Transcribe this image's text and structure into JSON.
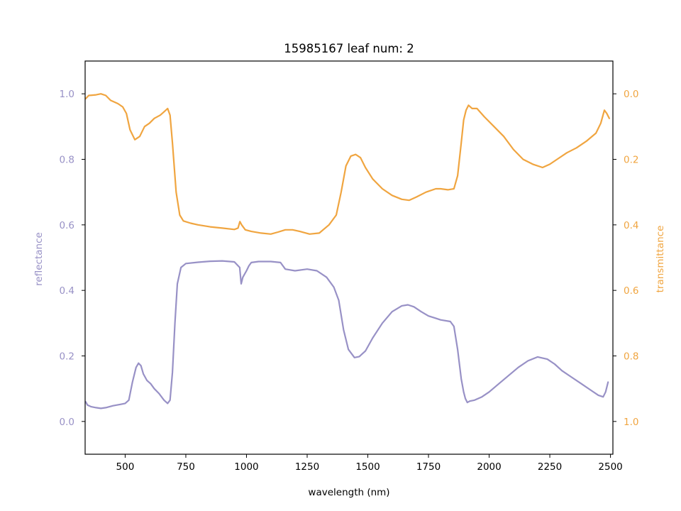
{
  "chart_data": {
    "type": "line",
    "title": "15985167 leaf num: 2",
    "xlabel": "wavelength (nm)",
    "xlim": [
      335,
      2510
    ],
    "xticks": [
      "500",
      "750",
      "1000",
      "1250",
      "1500",
      "1750",
      "2000",
      "2250",
      "2500"
    ],
    "y_left": {
      "label": "reflectance",
      "lim": [
        -0.1,
        1.1
      ],
      "ticks": [
        "0.0",
        "0.2",
        "0.4",
        "0.6",
        "0.8",
        "1.0"
      ],
      "color": "#9891c6"
    },
    "y_right": {
      "label": "transmittance",
      "lim": [
        1.1,
        -0.1
      ],
      "inverted": true,
      "ticks": [
        "0.0",
        "0.2",
        "0.4",
        "0.6",
        "0.8",
        "1.0"
      ],
      "color": "#f0a540"
    },
    "grid": false,
    "legend": "none",
    "series": [
      {
        "axis": "left",
        "color": "#9891c6",
        "points": [
          [
            337,
            0.06
          ],
          [
            345,
            0.05
          ],
          [
            360,
            0.045
          ],
          [
            380,
            0.042
          ],
          [
            400,
            0.04
          ],
          [
            420,
            0.042
          ],
          [
            450,
            0.048
          ],
          [
            480,
            0.052
          ],
          [
            500,
            0.055
          ],
          [
            515,
            0.065
          ],
          [
            530,
            0.12
          ],
          [
            545,
            0.165
          ],
          [
            555,
            0.178
          ],
          [
            565,
            0.17
          ],
          [
            575,
            0.145
          ],
          [
            590,
            0.125
          ],
          [
            605,
            0.115
          ],
          [
            620,
            0.1
          ],
          [
            640,
            0.085
          ],
          [
            660,
            0.065
          ],
          [
            675,
            0.055
          ],
          [
            685,
            0.065
          ],
          [
            695,
            0.15
          ],
          [
            705,
            0.3
          ],
          [
            715,
            0.42
          ],
          [
            730,
            0.47
          ],
          [
            750,
            0.482
          ],
          [
            800,
            0.486
          ],
          [
            850,
            0.489
          ],
          [
            900,
            0.49
          ],
          [
            950,
            0.487
          ],
          [
            972,
            0.47
          ],
          [
            978,
            0.42
          ],
          [
            985,
            0.44
          ],
          [
            1000,
            0.46
          ],
          [
            1010,
            0.475
          ],
          [
            1020,
            0.485
          ],
          [
            1050,
            0.488
          ],
          [
            1100,
            0.488
          ],
          [
            1140,
            0.485
          ],
          [
            1160,
            0.465
          ],
          [
            1200,
            0.46
          ],
          [
            1250,
            0.465
          ],
          [
            1290,
            0.46
          ],
          [
            1330,
            0.44
          ],
          [
            1360,
            0.41
          ],
          [
            1380,
            0.37
          ],
          [
            1400,
            0.28
          ],
          [
            1420,
            0.22
          ],
          [
            1445,
            0.195
          ],
          [
            1465,
            0.198
          ],
          [
            1490,
            0.215
          ],
          [
            1520,
            0.255
          ],
          [
            1560,
            0.3
          ],
          [
            1600,
            0.335
          ],
          [
            1640,
            0.353
          ],
          [
            1665,
            0.356
          ],
          [
            1690,
            0.35
          ],
          [
            1720,
            0.335
          ],
          [
            1750,
            0.322
          ],
          [
            1780,
            0.315
          ],
          [
            1800,
            0.31
          ],
          [
            1840,
            0.305
          ],
          [
            1855,
            0.29
          ],
          [
            1870,
            0.22
          ],
          [
            1885,
            0.13
          ],
          [
            1895,
            0.09
          ],
          [
            1902,
            0.07
          ],
          [
            1910,
            0.058
          ],
          [
            1920,
            0.062
          ],
          [
            1940,
            0.065
          ],
          [
            1970,
            0.075
          ],
          [
            2000,
            0.09
          ],
          [
            2040,
            0.115
          ],
          [
            2080,
            0.14
          ],
          [
            2120,
            0.165
          ],
          [
            2160,
            0.185
          ],
          [
            2200,
            0.197
          ],
          [
            2240,
            0.19
          ],
          [
            2270,
            0.175
          ],
          [
            2300,
            0.155
          ],
          [
            2340,
            0.135
          ],
          [
            2380,
            0.115
          ],
          [
            2420,
            0.095
          ],
          [
            2450,
            0.08
          ],
          [
            2470,
            0.075
          ],
          [
            2480,
            0.09
          ],
          [
            2490,
            0.12
          ]
        ]
      },
      {
        "axis": "right",
        "color": "#f0a540",
        "points": [
          [
            337,
            0.015
          ],
          [
            350,
            0.005
          ],
          [
            380,
            0.003
          ],
          [
            400,
            0.0
          ],
          [
            420,
            0.005
          ],
          [
            440,
            0.02
          ],
          [
            470,
            0.03
          ],
          [
            490,
            0.04
          ],
          [
            505,
            0.06
          ],
          [
            520,
            0.11
          ],
          [
            540,
            0.14
          ],
          [
            560,
            0.13
          ],
          [
            580,
            0.1
          ],
          [
            600,
            0.09
          ],
          [
            620,
            0.075
          ],
          [
            645,
            0.065
          ],
          [
            660,
            0.055
          ],
          [
            675,
            0.045
          ],
          [
            685,
            0.065
          ],
          [
            695,
            0.15
          ],
          [
            710,
            0.3
          ],
          [
            725,
            0.37
          ],
          [
            740,
            0.388
          ],
          [
            770,
            0.395
          ],
          [
            800,
            0.4
          ],
          [
            850,
            0.406
          ],
          [
            900,
            0.41
          ],
          [
            950,
            0.414
          ],
          [
            965,
            0.41
          ],
          [
            973,
            0.39
          ],
          [
            980,
            0.4
          ],
          [
            995,
            0.415
          ],
          [
            1020,
            0.42
          ],
          [
            1060,
            0.425
          ],
          [
            1100,
            0.428
          ],
          [
            1130,
            0.422
          ],
          [
            1160,
            0.415
          ],
          [
            1190,
            0.415
          ],
          [
            1220,
            0.42
          ],
          [
            1260,
            0.428
          ],
          [
            1300,
            0.425
          ],
          [
            1340,
            0.4
          ],
          [
            1370,
            0.37
          ],
          [
            1390,
            0.3
          ],
          [
            1410,
            0.22
          ],
          [
            1430,
            0.19
          ],
          [
            1450,
            0.185
          ],
          [
            1470,
            0.195
          ],
          [
            1490,
            0.225
          ],
          [
            1520,
            0.26
          ],
          [
            1560,
            0.29
          ],
          [
            1600,
            0.31
          ],
          [
            1640,
            0.322
          ],
          [
            1670,
            0.325
          ],
          [
            1700,
            0.315
          ],
          [
            1740,
            0.3
          ],
          [
            1780,
            0.29
          ],
          [
            1800,
            0.29
          ],
          [
            1830,
            0.293
          ],
          [
            1855,
            0.29
          ],
          [
            1870,
            0.25
          ],
          [
            1885,
            0.15
          ],
          [
            1895,
            0.08
          ],
          [
            1905,
            0.05
          ],
          [
            1915,
            0.035
          ],
          [
            1930,
            0.045
          ],
          [
            1950,
            0.045
          ],
          [
            1980,
            0.07
          ],
          [
            2020,
            0.1
          ],
          [
            2060,
            0.13
          ],
          [
            2100,
            0.17
          ],
          [
            2140,
            0.2
          ],
          [
            2180,
            0.215
          ],
          [
            2220,
            0.225
          ],
          [
            2250,
            0.215
          ],
          [
            2280,
            0.2
          ],
          [
            2320,
            0.18
          ],
          [
            2360,
            0.165
          ],
          [
            2400,
            0.145
          ],
          [
            2440,
            0.12
          ],
          [
            2460,
            0.09
          ],
          [
            2475,
            0.05
          ],
          [
            2485,
            0.06
          ],
          [
            2495,
            0.075
          ]
        ]
      }
    ]
  }
}
